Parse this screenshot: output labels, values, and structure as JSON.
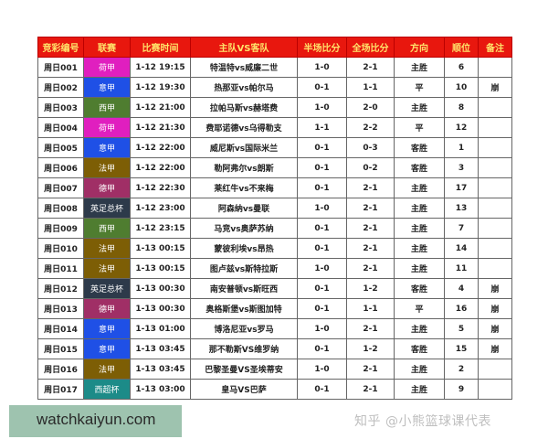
{
  "headers": [
    "竞彩编号",
    "联赛",
    "比赛时间",
    "主队VS客队",
    "半场比分",
    "全场比分",
    "方向",
    "顺位",
    "备注"
  ],
  "league_colors": {
    "荷甲": "#e01fbf",
    "意甲": "#1f50e6",
    "西甲": "#4f7d30",
    "法甲": "#7d5e05",
    "德甲": "#a02f66",
    "英足总杯": "#2d3a4a",
    "西超杯": "#1c8b88"
  },
  "rows": [
    {
      "id": "周日001",
      "league": "荷甲",
      "time": "1-12 19:15",
      "match": "特温特vs威廉二世",
      "half": "1-0",
      "full": "2-1",
      "dir": "主胜",
      "rank": "6",
      "note": ""
    },
    {
      "id": "周日002",
      "league": "意甲",
      "time": "1-12 19:30",
      "match": "热那亚vs帕尔马",
      "half": "0-1",
      "full": "1-1",
      "dir": "平",
      "rank": "10",
      "note": "崩"
    },
    {
      "id": "周日003",
      "league": "西甲",
      "time": "1-12 21:00",
      "match": "拉帕马斯vs赫塔费",
      "half": "1-0",
      "full": "2-0",
      "dir": "主胜",
      "rank": "8",
      "note": ""
    },
    {
      "id": "周日004",
      "league": "荷甲",
      "time": "1-12 21:30",
      "match": "费耶诺德vs乌得勒支",
      "half": "1-1",
      "full": "2-2",
      "dir": "平",
      "rank": "12",
      "note": ""
    },
    {
      "id": "周日005",
      "league": "意甲",
      "time": "1-12 22:00",
      "match": "威尼斯vs国际米兰",
      "half": "0-1",
      "full": "0-3",
      "dir": "客胜",
      "rank": "1",
      "note": ""
    },
    {
      "id": "周日006",
      "league": "法甲",
      "time": "1-12 22:00",
      "match": "勒阿弗尔vs朗斯",
      "half": "0-1",
      "full": "0-2",
      "dir": "客胜",
      "rank": "3",
      "note": ""
    },
    {
      "id": "周日007",
      "league": "德甲",
      "time": "1-12 22:30",
      "match": "莱红牛vs不来梅",
      "half": "0-1",
      "full": "2-1",
      "dir": "主胜",
      "rank": "17",
      "note": ""
    },
    {
      "id": "周日008",
      "league": "英足总杯",
      "time": "1-12 23:00",
      "match": "阿森纳vs曼联",
      "half": "1-0",
      "full": "2-1",
      "dir": "主胜",
      "rank": "13",
      "note": ""
    },
    {
      "id": "周日009",
      "league": "西甲",
      "time": "1-12 23:15",
      "match": "马竞vs奥萨苏纳",
      "half": "0-1",
      "full": "2-1",
      "dir": "主胜",
      "rank": "7",
      "note": ""
    },
    {
      "id": "周日010",
      "league": "法甲",
      "time": "1-13 00:15",
      "match": "蒙彼利埃vs昂热",
      "half": "0-1",
      "full": "2-1",
      "dir": "主胜",
      "rank": "14",
      "note": ""
    },
    {
      "id": "周日011",
      "league": "法甲",
      "time": "1-13 00:15",
      "match": "图卢兹vs斯特拉斯",
      "half": "1-0",
      "full": "2-1",
      "dir": "主胜",
      "rank": "11",
      "note": ""
    },
    {
      "id": "周日012",
      "league": "英足总杯",
      "time": "1-13 00:30",
      "match": "南安普顿vs斯旺西",
      "half": "0-1",
      "full": "1-2",
      "dir": "客胜",
      "rank": "4",
      "note": "崩"
    },
    {
      "id": "周日013",
      "league": "德甲",
      "time": "1-13 00:30",
      "match": "奥格斯堡vs斯图加特",
      "half": "0-1",
      "full": "1-1",
      "dir": "平",
      "rank": "16",
      "note": "崩"
    },
    {
      "id": "周日014",
      "league": "意甲",
      "time": "1-13 01:00",
      "match": "博洛尼亚vs罗马",
      "half": "1-0",
      "full": "2-1",
      "dir": "主胜",
      "rank": "5",
      "note": "崩"
    },
    {
      "id": "周日015",
      "league": "意甲",
      "time": "1-13 03:45",
      "match": "那不勒斯VS维罗纳",
      "half": "0-1",
      "full": "1-2",
      "dir": "客胜",
      "rank": "15",
      "note": "崩"
    },
    {
      "id": "周日016",
      "league": "法甲",
      "time": "1-13 03:45",
      "match": "巴黎圣曼VS圣埃蒂安",
      "half": "1-0",
      "full": "2-1",
      "dir": "主胜",
      "rank": "2",
      "note": ""
    },
    {
      "id": "周日017",
      "league": "西超杯",
      "time": "1-13 03:00",
      "match": "皇马VS巴萨",
      "half": "0-1",
      "full": "2-1",
      "dir": "主胜",
      "rank": "9",
      "note": ""
    }
  ],
  "watermark_site": "watchkaiyun.com",
  "watermark_zhihu": "知乎 @小熊篮球课代表"
}
